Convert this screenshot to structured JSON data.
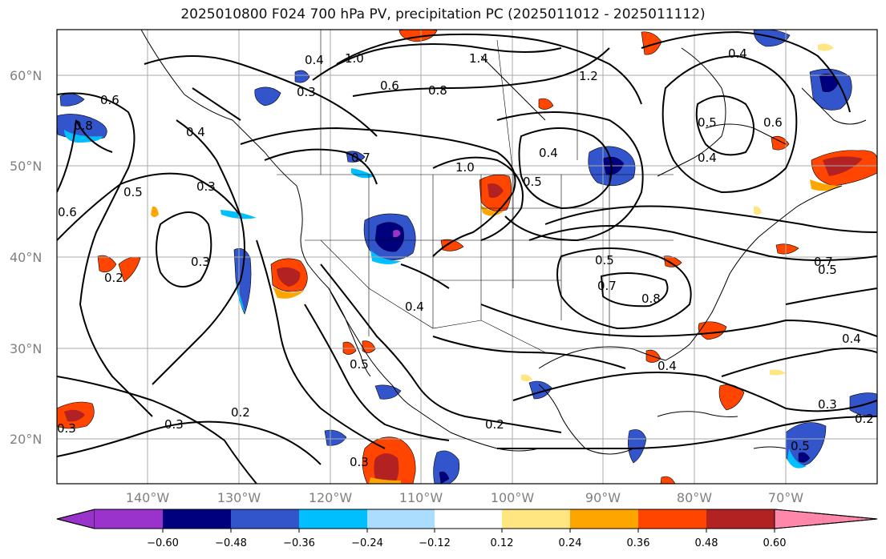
{
  "title": "2025010800 F024 700 hPa PV, precipitation PC (2025011012 - 2025011112)",
  "lat_labels": [
    "60°N",
    "50°N",
    "40°N",
    "30°N",
    "20°N"
  ],
  "lon_labels": [
    "140°W",
    "130°W",
    "120°W",
    "110°W",
    "100°W",
    "90°W",
    "80°W",
    "70°W"
  ],
  "colorbar": {
    "colors": [
      "#9933cc",
      "#00007f",
      "#3355cc",
      "#00bfff",
      "#aaddff",
      "#ffffff",
      "#ffe680",
      "#ffa500",
      "#ff4500",
      "#b22222",
      "#ff88aa"
    ],
    "tick_labels": [
      "−0.60",
      "−0.48",
      "−0.36",
      "−0.24",
      "−0.12",
      "0.12",
      "0.24",
      "0.36",
      "0.48",
      "0.60"
    ]
  },
  "contour_labels": [
    "0.6",
    "0.8",
    "0.6",
    "0.5",
    "0.4",
    "0.3",
    "0.4",
    "1.0",
    "1.4",
    "1.2",
    "0.6",
    "0.8",
    "0.3",
    "0.7",
    "0.7",
    "1.0",
    "0.4",
    "0.5",
    "0.5",
    "0.3",
    "0.2",
    "0.4",
    "0.5",
    "0.8",
    "0.7",
    "0.5",
    "0.4",
    "0.3",
    "0.2",
    "0.3",
    "0.2",
    "0.3",
    "0.2",
    "0.3",
    "0.4",
    "0.4",
    "0.6",
    "0.5",
    "0.4",
    "0.5"
  ]
}
